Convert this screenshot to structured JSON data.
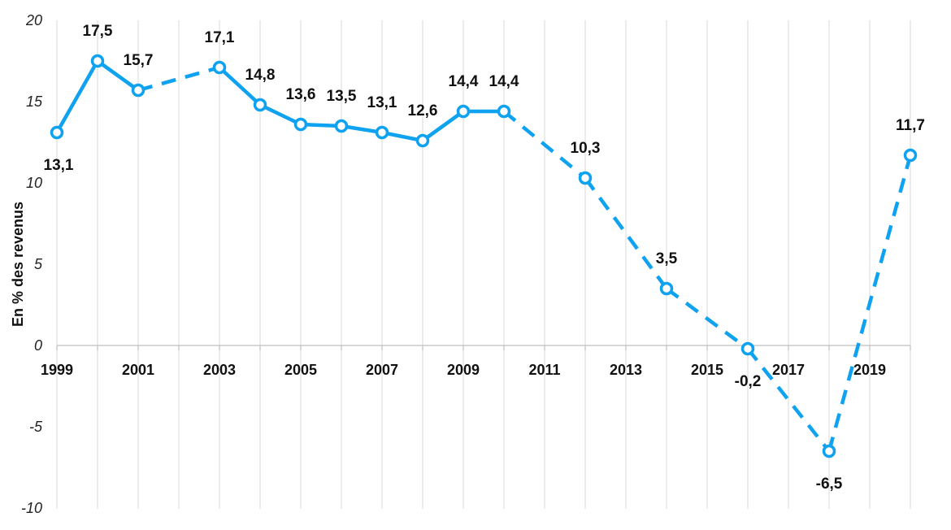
{
  "chart_data": {
    "type": "line",
    "title": "",
    "xlabel": "",
    "ylabel": "En % des revenus",
    "ylim": [
      -10,
      20
    ],
    "xlim": [
      1999,
      2020
    ],
    "yticks": [
      "20",
      "15",
      "10",
      "5",
      "0",
      "-5",
      "-10"
    ],
    "yticks_values": [
      20,
      15,
      10,
      5,
      0,
      -5,
      -10
    ],
    "xticks": [
      "1999",
      "2001",
      "2003",
      "2005",
      "2007",
      "2009",
      "2011",
      "2013",
      "2015",
      "2017",
      "2019"
    ],
    "xticks_values": [
      1999,
      2001,
      2003,
      2005,
      2007,
      2009,
      2011,
      2013,
      2015,
      2017,
      2019
    ],
    "grid": "vertical",
    "color": "#0ea2f0",
    "series": [
      {
        "x": [
          1999,
          2000,
          2001,
          2003,
          2004,
          2005,
          2006,
          2007,
          2008,
          2009,
          2010,
          2012,
          2014,
          2016,
          2018,
          2020
        ],
        "values": [
          13.1,
          17.5,
          15.7,
          17.1,
          14.8,
          13.6,
          13.5,
          13.1,
          12.6,
          14.4,
          14.4,
          10.3,
          3.5,
          -0.2,
          -6.5,
          11.7
        ],
        "labels": [
          "13,1",
          "17,5",
          "15,7",
          "17,1",
          "14,8",
          "13,6",
          "13,5",
          "13,1",
          "12,6",
          "14,4",
          "14,4",
          "10,3",
          "3,5",
          "-0,2",
          "-6,5",
          "11,7"
        ],
        "segment_styles": [
          "solid",
          "solid",
          "dashed",
          "solid",
          "solid",
          "solid",
          "solid",
          "solid",
          "solid",
          "solid",
          "dashed",
          "dashed",
          "dashed",
          "dashed",
          "dashed"
        ]
      }
    ]
  }
}
